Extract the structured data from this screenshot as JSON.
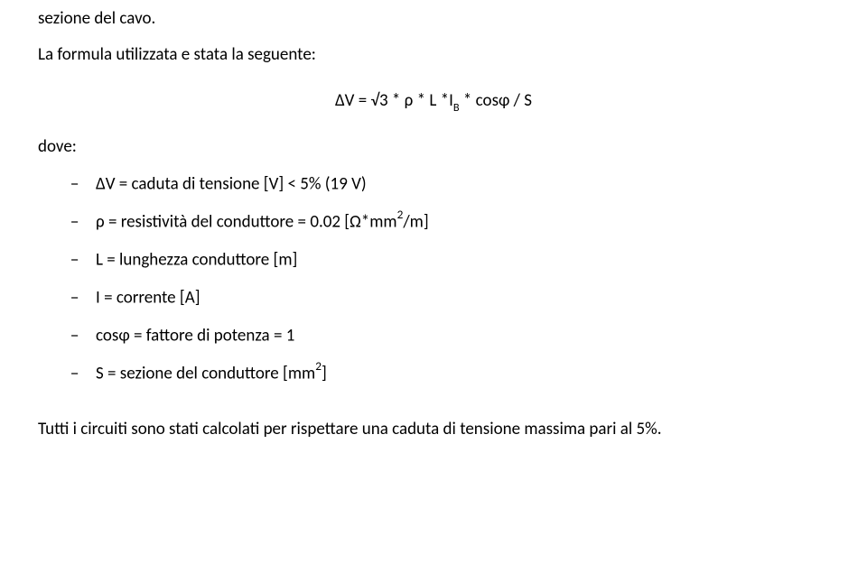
{
  "intro1": "sezione del cavo.",
  "intro2": "La formula utilizzata e stata la seguente:",
  "formula_parts": {
    "lead": "ΔV = √3 * ρ * L *I",
    "sub": "B",
    "tail": " * cosφ / S"
  },
  "list_intro": "dove:",
  "items": [
    {
      "pre": "ΔV = caduta di tensione [V] < 5% (19 V)",
      "sup": "",
      "post": ""
    },
    {
      "pre": "ρ = resistività del conduttore = 0.02 [Ω*mm",
      "sup": "2",
      "post": "/m]"
    },
    {
      "pre": "L = lunghezza conduttore [m]",
      "sup": "",
      "post": ""
    },
    {
      "pre": "I = corrente [A]",
      "sup": "",
      "post": ""
    },
    {
      "pre": "cosφ = fattore di potenza  = 1",
      "sup": "",
      "post": ""
    },
    {
      "pre": "S = sezione del conduttore [mm",
      "sup": "2",
      "post": "]"
    }
  ],
  "closing": "Tutti i circuiti sono stati calcolati per rispettare una caduta di tensione massima pari al 5%.",
  "dash": "−",
  "colors": {
    "text": "#000000",
    "background": "#ffffff"
  },
  "font": {
    "family": "Calibri",
    "size_pt": 14
  }
}
